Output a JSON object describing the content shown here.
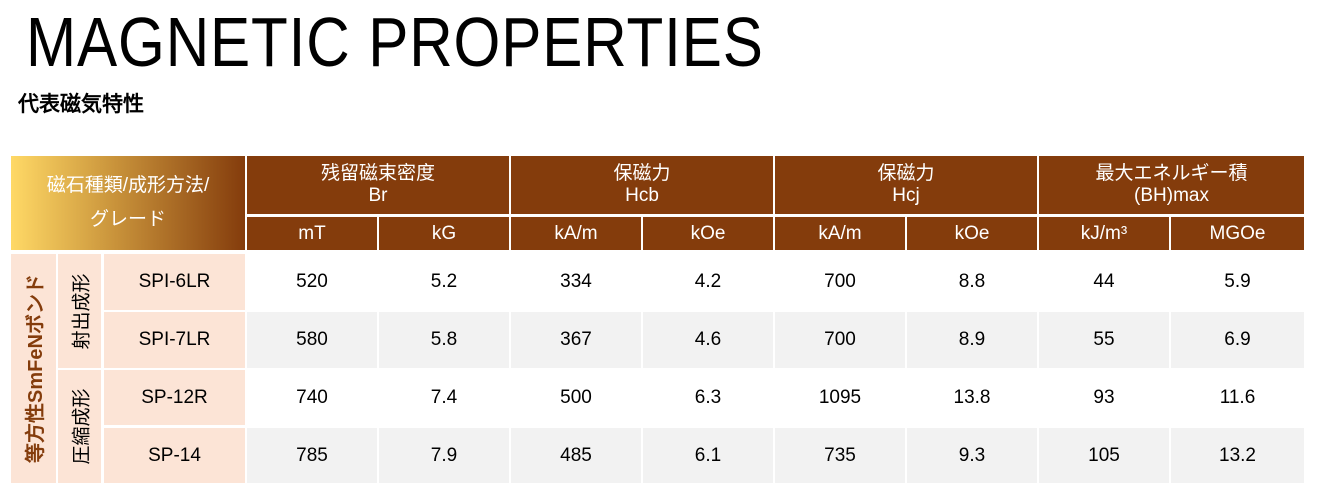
{
  "title": "MAGNETIC PROPERTIES",
  "subtitle": "代表磁気特性",
  "table": {
    "corner_header": [
      "磁石種類/成形方法/",
      "グレード"
    ],
    "groups": [
      {
        "name": "残留磁束密度",
        "symbol": "Br",
        "units": [
          "mT",
          "kG"
        ]
      },
      {
        "name": "保磁力",
        "symbol": "Hcb",
        "units": [
          "kA/m",
          "kOe"
        ]
      },
      {
        "name": "保磁力",
        "symbol": "Hcj",
        "units": [
          "kA/m",
          "kOe"
        ]
      },
      {
        "name": "最大エネルギー積",
        "symbol": "(BH)max",
        "units": [
          "kJ/m³",
          "MGOe"
        ]
      }
    ],
    "magnet_type": "等方性SmFeNボンド",
    "methods": [
      "射出成形",
      "圧縮成形"
    ],
    "rows": [
      {
        "grade": "SPI-6LR",
        "values": [
          "520",
          "5.2",
          "334",
          "4.2",
          "700",
          "8.8",
          "44",
          "5.9"
        ]
      },
      {
        "grade": "SPI-7LR",
        "values": [
          "580",
          "5.8",
          "367",
          "4.6",
          "700",
          "8.9",
          "55",
          "6.9"
        ]
      },
      {
        "grade": "SP-12R",
        "values": [
          "740",
          "7.4",
          "500",
          "6.3",
          "1095",
          "13.8",
          "93",
          "11.6"
        ]
      },
      {
        "grade": "SP-14",
        "values": [
          "785",
          "7.9",
          "485",
          "6.1",
          "735",
          "9.3",
          "105",
          "13.2"
        ]
      }
    ]
  },
  "colors": {
    "header": "#843c0c",
    "label_bg": "#fce4d6",
    "stripe": "#f2f2f2",
    "gold": "#ffd966"
  }
}
